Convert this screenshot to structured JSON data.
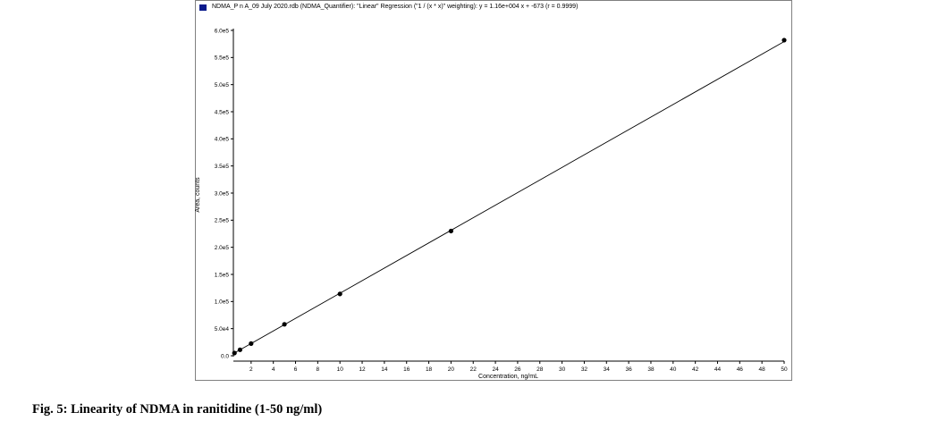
{
  "legend": {
    "text": "NDMA_P n A_09 July 2020.rdb (NDMA_Quantifier): \"Linear\" Regression (\"1 / (x * x)\" weighting): y = 1.16e+004 x + -673 (r = 0.9999)",
    "swatch_color": "#0a1a8c"
  },
  "caption": "Fig. 5: Linearity of NDMA in ranitidine (1-50 ng/ml)",
  "chart_data": {
    "type": "scatter",
    "title": "",
    "xlabel": "Concentration, ng/mL",
    "ylabel": "Area, counts",
    "xlim": [
      0,
      50
    ],
    "ylim": [
      0,
      600000
    ],
    "xticks": [
      2,
      4,
      6,
      8,
      10,
      12,
      14,
      16,
      18,
      20,
      22,
      24,
      26,
      28,
      30,
      32,
      34,
      36,
      38,
      40,
      42,
      44,
      46,
      48,
      50
    ],
    "yticks": [
      {
        "value": 0,
        "label": "0.0"
      },
      {
        "value": 50000,
        "label": "5.0e4"
      },
      {
        "value": 100000,
        "label": "1.0e5"
      },
      {
        "value": 150000,
        "label": "1.5e5"
      },
      {
        "value": 200000,
        "label": "2.0e5"
      },
      {
        "value": 250000,
        "label": "2.5e5"
      },
      {
        "value": 300000,
        "label": "3.0e5"
      },
      {
        "value": 350000,
        "label": "3.5e5"
      },
      {
        "value": 400000,
        "label": "4.0e5"
      },
      {
        "value": 450000,
        "label": "4.5e5"
      },
      {
        "value": 500000,
        "label": "5.0e5"
      },
      {
        "value": 550000,
        "label": "5.5e5"
      },
      {
        "value": 600000,
        "label": "6.0e5"
      }
    ],
    "points": [
      {
        "x": 0.5,
        "y": 5000
      },
      {
        "x": 1,
        "y": 11000
      },
      {
        "x": 2,
        "y": 22500
      },
      {
        "x": 5,
        "y": 58000
      },
      {
        "x": 10,
        "y": 114000
      },
      {
        "x": 20,
        "y": 230000
      },
      {
        "x": 50,
        "y": 582000
      }
    ],
    "fit": {
      "slope": 11600,
      "intercept": -673,
      "x_range": [
        0.5,
        50
      ]
    },
    "grid": false,
    "legend_position": "top-left"
  }
}
